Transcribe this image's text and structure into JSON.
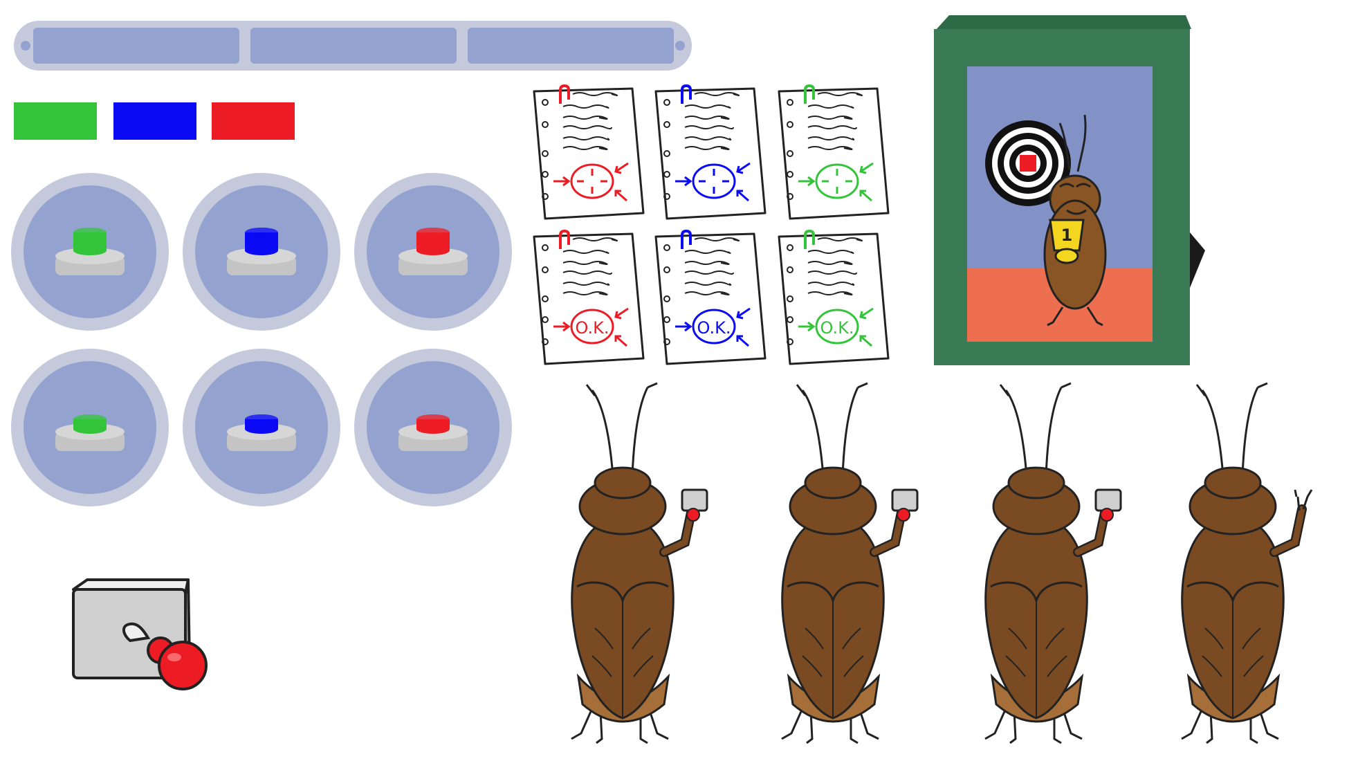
{
  "colors": {
    "panel_outer": "#c5c9dc",
    "panel_inner": "#94a2d0",
    "green": "#33c43a",
    "blue": "#0a0af5",
    "red": "#ed1c24",
    "frame_green": "#3a7a55",
    "screen_blue": "#8291c6",
    "screen_floor": "#ee6e50",
    "roach_brown": "#7a4a22",
    "roach_light": "#a66f3a"
  },
  "segment_bar": {
    "segments": 3
  },
  "swatches": [
    {
      "id": "green",
      "color": "#33c43a"
    },
    {
      "id": "blue",
      "color": "#0a0af5"
    },
    {
      "id": "red",
      "color": "#ed1c24"
    }
  ],
  "buttons": [
    {
      "row": "raised",
      "color": "#33c43a",
      "icon": "raised-button-icon"
    },
    {
      "row": "raised",
      "color": "#0a0af5",
      "icon": "raised-button-icon"
    },
    {
      "row": "raised",
      "color": "#ed1c24",
      "icon": "raised-button-icon"
    },
    {
      "row": "pressed",
      "color": "#33c43a",
      "icon": "pressed-button-icon"
    },
    {
      "row": "pressed",
      "color": "#0a0af5",
      "icon": "pressed-button-icon"
    },
    {
      "row": "pressed",
      "color": "#ed1c24",
      "icon": "pressed-button-icon"
    }
  ],
  "documents": [
    {
      "row": "target",
      "color": "#ed1c24",
      "mark": "target"
    },
    {
      "row": "target",
      "color": "#0a0af5",
      "mark": "target"
    },
    {
      "row": "target",
      "color": "#33c43a",
      "mark": "target"
    },
    {
      "row": "ok",
      "color": "#ed1c24",
      "mark": "O.K."
    },
    {
      "row": "ok",
      "color": "#0a0af5",
      "mark": "O.K."
    },
    {
      "row": "ok",
      "color": "#33c43a",
      "mark": "O.K."
    }
  ],
  "doc_ok_label": "O.K.",
  "trophy_label": "1",
  "roaches": [
    {
      "holds_remote": true
    },
    {
      "holds_remote": true
    },
    {
      "holds_remote": true
    },
    {
      "holds_remote": false
    }
  ]
}
